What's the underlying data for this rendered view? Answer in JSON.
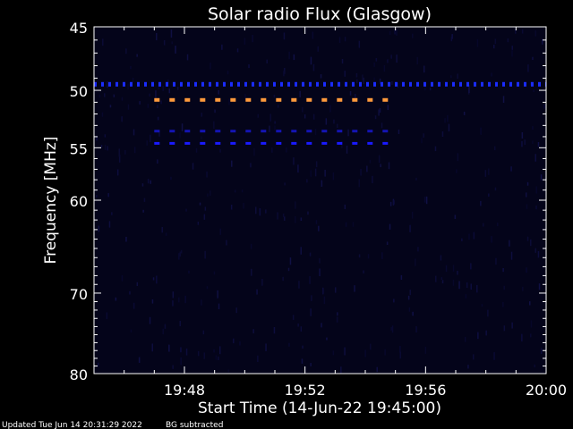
{
  "chart_data": {
    "type": "heatmap",
    "title": "Solar radio Flux (Glasgow)",
    "xlabel": "Start Time (14-Jun-22 19:45:00)",
    "ylabel": "Frequency [MHz]",
    "x_unit": "minutes since 19:45:00",
    "xlim": [
      0,
      15
    ],
    "ylim": [
      45,
      80
    ],
    "y_scale": "log",
    "y_direction": "down",
    "x_ticks": [
      {
        "value": 3,
        "label": "19:48"
      },
      {
        "value": 7,
        "label": "19:52"
      },
      {
        "value": 11,
        "label": "19:56"
      },
      {
        "value": 15,
        "label": "20:00"
      }
    ],
    "y_ticks": [
      {
        "value": 45,
        "label": "45"
      },
      {
        "value": 50,
        "label": "50"
      },
      {
        "value": 55,
        "label": "55"
      },
      {
        "value": 60,
        "label": "60"
      },
      {
        "value": 70,
        "label": "70"
      },
      {
        "value": 80,
        "label": "80"
      }
    ],
    "bands": [
      {
        "freq": 49.5,
        "x_start": 0,
        "x_end": 15,
        "color": "#1a2cff"
      },
      {
        "freq": 50.8,
        "x_start": 2,
        "x_end": 10,
        "color": "#ff9a3c"
      },
      {
        "freq": 53.5,
        "x_start": 2,
        "x_end": 10,
        "color": "#1414b4"
      },
      {
        "freq": 54.6,
        "x_start": 2,
        "x_end": 10,
        "color": "#1a1aff"
      }
    ],
    "grid": false
  },
  "footer": {
    "updated": "Updated Tue Jun 14 20:31:29 2022",
    "note": "BG subtracted"
  },
  "colors": {
    "background": "#000000",
    "plot_background": "#04041a",
    "axes": "#ffffff"
  }
}
